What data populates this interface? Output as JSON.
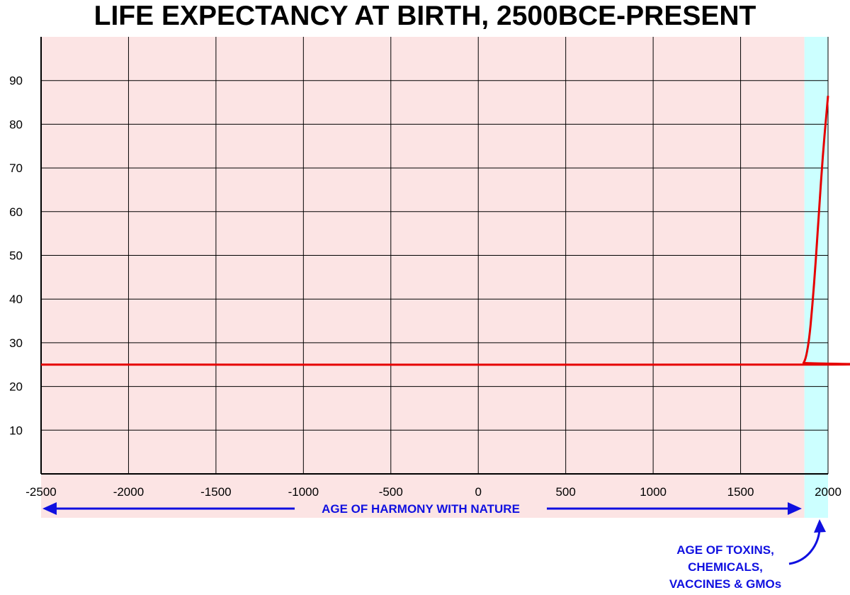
{
  "chart_data": {
    "type": "line",
    "title": "LIFE EXPECTANCY AT BIRTH, 2500BCE-PRESENT",
    "xlabel": "",
    "ylabel": "",
    "xlim": [
      -2500,
      2000
    ],
    "ylim": [
      0,
      100
    ],
    "x_ticks": [
      -2500,
      -2000,
      -1500,
      -1000,
      -500,
      0,
      500,
      1000,
      1500,
      2000
    ],
    "y_ticks": [
      10,
      20,
      30,
      40,
      50,
      60,
      70,
      80,
      90
    ],
    "grid": true,
    "series": [
      {
        "x": [
          -2500,
          1850,
          1860,
          1870,
          1880,
          1890,
          1900,
          1910,
          1920,
          1930,
          1940,
          1950,
          1960,
          1970,
          1980,
          1990,
          2000
        ],
        "y": [
          25,
          25,
          25.4,
          26.3,
          28,
          30.5,
          34,
          38.5,
          43.5,
          49,
          55,
          61,
          67,
          72.5,
          77.5,
          82,
          86.5
        ],
        "color": "#e60000"
      }
    ],
    "regions": [
      {
        "from": -2500,
        "to": 1865,
        "color": "#fce4e4"
      },
      {
        "from": 1865,
        "to": 2000,
        "color": "#ccffff"
      }
    ],
    "annotations": [
      {
        "text": "AGE OF HARMONY WITH NATURE",
        "from": -2500,
        "to": 1865
      },
      {
        "lines": [
          "AGE OF TOXINS,",
          "CHEMICALS,",
          "VACCINES & GMOs"
        ]
      }
    ],
    "annotation_color": "#1010e0"
  }
}
